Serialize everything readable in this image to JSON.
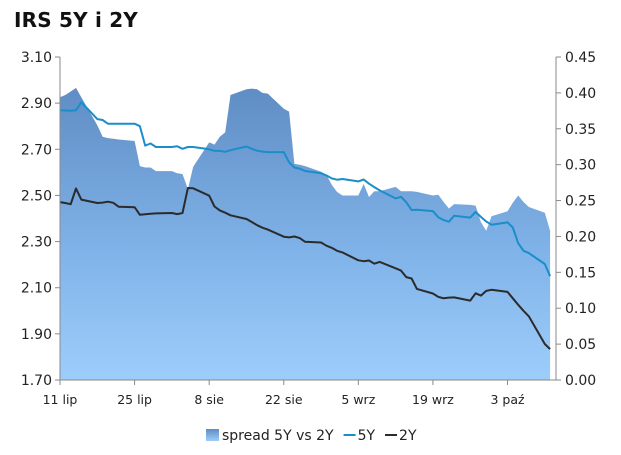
{
  "chart_data": {
    "type": "area+line",
    "title": "IRS 5Y i 2Y",
    "x": [
      "2011-07-11",
      "2011-07-12",
      "2011-07-13",
      "2011-07-14",
      "2011-07-15",
      "2011-07-18",
      "2011-07-19",
      "2011-07-20",
      "2011-07-21",
      "2011-07-22",
      "2011-07-25",
      "2011-07-26",
      "2011-07-27",
      "2011-07-28",
      "2011-07-29",
      "2011-08-01",
      "2011-08-02",
      "2011-08-03",
      "2011-08-04",
      "2011-08-05",
      "2011-08-08",
      "2011-08-09",
      "2011-08-10",
      "2011-08-11",
      "2011-08-12",
      "2011-08-15",
      "2011-08-16",
      "2011-08-17",
      "2011-08-18",
      "2011-08-19",
      "2011-08-22",
      "2011-08-23",
      "2011-08-24",
      "2011-08-25",
      "2011-08-26",
      "2011-08-29",
      "2011-08-30",
      "2011-08-31",
      "2011-09-01",
      "2011-09-02",
      "2011-09-05",
      "2011-09-06",
      "2011-09-07",
      "2011-09-08",
      "2011-09-09",
      "2011-09-12",
      "2011-09-13",
      "2011-09-14",
      "2011-09-15",
      "2011-09-16",
      "2011-09-19",
      "2011-09-20",
      "2011-09-21",
      "2011-09-22",
      "2011-09-23",
      "2011-09-26",
      "2011-09-27",
      "2011-09-28",
      "2011-09-29",
      "2011-09-30",
      "2011-10-03",
      "2011-10-04",
      "2011-10-05",
      "2011-10-06",
      "2011-10-07",
      "2011-10-10",
      "2011-10-11"
    ],
    "series": [
      {
        "name": "spread 5Y vs 2Y",
        "type": "area",
        "axis": "right",
        "color": "#6f9ed3",
        "values": [
          0.394,
          0.397,
          0.402,
          0.407,
          0.394,
          0.355,
          0.339,
          0.337,
          0.336,
          0.335,
          0.333,
          0.298,
          0.296,
          0.296,
          0.291,
          0.291,
          0.288,
          0.287,
          0.266,
          0.297,
          0.331,
          0.328,
          0.339,
          0.345,
          0.397,
          0.405,
          0.406,
          0.405,
          0.4,
          0.399,
          0.378,
          0.374,
          0.301,
          0.3,
          0.298,
          0.29,
          0.286,
          0.272,
          0.262,
          0.257,
          0.257,
          0.273,
          0.255,
          0.263,
          0.263,
          0.269,
          0.263,
          0.263,
          0.263,
          0.262,
          0.257,
          0.258,
          0.248,
          0.239,
          0.245,
          0.244,
          0.243,
          0.22,
          0.208,
          0.228,
          0.235,
          0.247,
          0.257,
          0.248,
          0.241,
          0.233,
          0.208
        ]
      },
      {
        "name": "5Y",
        "type": "line",
        "axis": "left",
        "color": "#1b8ec9",
        "values": [
          2.869,
          2.868,
          2.867,
          2.869,
          2.904,
          2.831,
          2.827,
          2.811,
          2.811,
          2.811,
          2.811,
          2.8,
          2.716,
          2.725,
          2.71,
          2.71,
          2.713,
          2.702,
          2.71,
          2.71,
          2.7,
          2.693,
          2.693,
          2.689,
          2.696,
          2.712,
          2.702,
          2.694,
          2.69,
          2.688,
          2.688,
          2.643,
          2.621,
          2.616,
          2.606,
          2.596,
          2.587,
          2.574,
          2.568,
          2.571,
          2.561,
          2.569,
          2.551,
          2.536,
          2.522,
          2.487,
          2.494,
          2.47,
          2.437,
          2.438,
          2.432,
          2.405,
          2.393,
          2.386,
          2.412,
          2.404,
          2.428,
          2.407,
          2.387,
          2.373,
          2.383,
          2.361,
          2.293,
          2.26,
          2.25,
          2.203,
          2.15
        ]
      },
      {
        "name": "2Y",
        "type": "line",
        "axis": "left",
        "color": "#2b2b2b",
        "values": [
          2.471,
          2.467,
          2.462,
          2.53,
          2.482,
          2.467,
          2.469,
          2.473,
          2.468,
          2.451,
          2.449,
          2.416,
          2.418,
          2.421,
          2.422,
          2.424,
          2.419,
          2.424,
          2.532,
          2.531,
          2.499,
          2.452,
          2.435,
          2.425,
          2.414,
          2.398,
          2.385,
          2.371,
          2.36,
          2.352,
          2.321,
          2.318,
          2.322,
          2.315,
          2.299,
          2.296,
          2.282,
          2.273,
          2.26,
          2.253,
          2.219,
          2.215,
          2.218,
          2.204,
          2.212,
          2.184,
          2.174,
          2.146,
          2.14,
          2.095,
          2.075,
          2.06,
          2.054,
          2.057,
          2.058,
          2.044,
          2.076,
          2.066,
          2.086,
          2.091,
          2.082,
          2.054,
          2.026,
          2.0,
          1.976,
          1.856,
          1.834
        ]
      }
    ],
    "x_tick_labels": [
      "11 lip",
      "25 lip",
      "8 sie",
      "22 sie",
      "5 wrz",
      "19 wrz",
      "3 paź"
    ],
    "x_tick_dates": [
      "2011-07-11",
      "2011-07-25",
      "2011-08-08",
      "2011-08-22",
      "2011-09-05",
      "2011-09-19",
      "2011-10-03"
    ],
    "y_left": {
      "min": 1.7,
      "max": 3.1,
      "step": 0.2,
      "decimals": 2
    },
    "y_right": {
      "min": 0.0,
      "max": 0.45,
      "step": 0.05,
      "decimals": 2
    },
    "grid": false,
    "legend_position": "bottom"
  }
}
